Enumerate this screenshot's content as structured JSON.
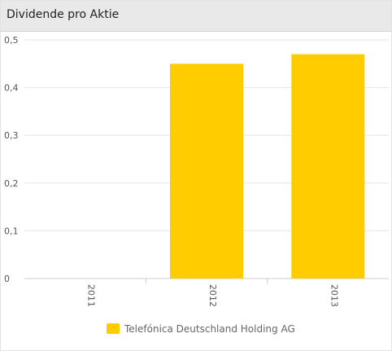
{
  "header": {
    "title": "Dividende pro Aktie"
  },
  "chart_data": {
    "type": "bar",
    "title": "Dividende pro Aktie",
    "categories": [
      "2011",
      "2012",
      "2013"
    ],
    "series": [
      {
        "name": "Telefónica Deutschland Holding AG",
        "values": [
          0,
          0.45,
          0.47
        ]
      }
    ],
    "ylim": [
      0,
      0.5
    ],
    "yticks": [
      {
        "value": 0,
        "label": "0"
      },
      {
        "value": 0.1,
        "label": "0,1"
      },
      {
        "value": 0.2,
        "label": "0,2"
      },
      {
        "value": 0.3,
        "label": "0,3"
      },
      {
        "value": 0.4,
        "label": "0,4"
      },
      {
        "value": 0.5,
        "label": "0,5"
      }
    ],
    "grid": true,
    "legend_position": "bottom",
    "colors": {
      "series": "#ffcc00",
      "grid": "#e6e6e6",
      "axis": "#cccccc"
    }
  }
}
